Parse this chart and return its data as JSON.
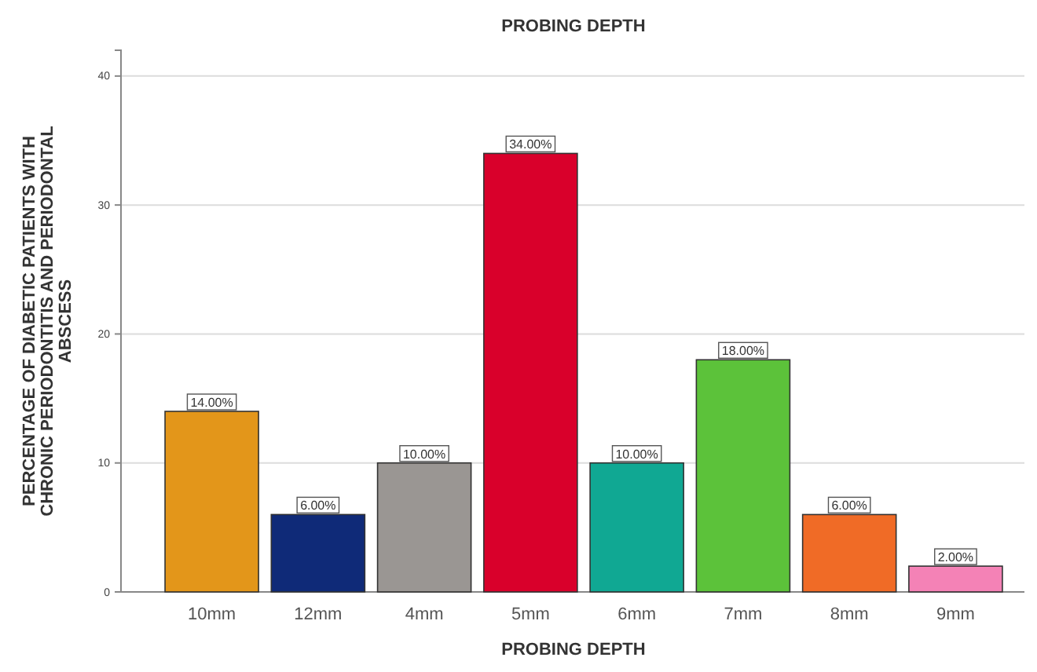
{
  "chart_data": {
    "type": "bar",
    "title": "PROBING DEPTH",
    "xlabel": "PROBING DEPTH",
    "ylabel": "PERCENTAGE OF DIABETIC PATIENTS WITH CHRONIC PERIODONTITIS AND PERIODONTAL ABSCESS",
    "categories": [
      "10mm",
      "12mm",
      "4mm",
      "5mm",
      "6mm",
      "7mm",
      "8mm",
      "9mm"
    ],
    "values": [
      14,
      6,
      10,
      34,
      10,
      18,
      6,
      2
    ],
    "colors": [
      "#e3961a",
      "#0f2a78",
      "#9a9693",
      "#d9002b",
      "#10a893",
      "#5cc23a",
      "#f06b26",
      "#f482b6"
    ],
    "value_labels": [
      "14.00%",
      "6.00%",
      "10.00%",
      "34.00%",
      "10.00%",
      "18.00%",
      "6.00%",
      "2.00%"
    ],
    "ylim": [
      0,
      42
    ],
    "yticks": [
      0,
      10,
      20,
      30,
      40
    ],
    "grid": "y"
  }
}
